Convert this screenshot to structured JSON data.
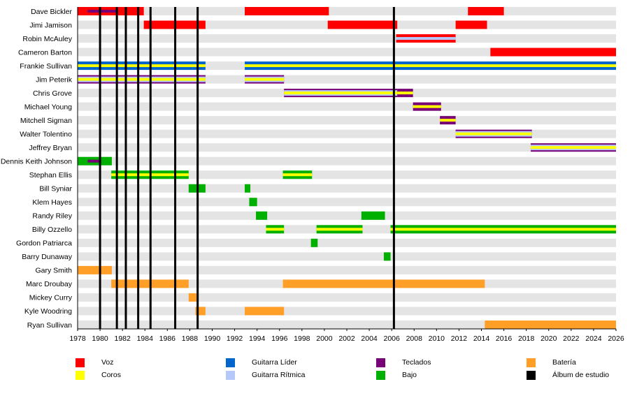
{
  "chart_data": {
    "type": "timeline",
    "xlim": [
      1978,
      2026
    ],
    "x_ticks": [
      1978,
      1980,
      1982,
      1984,
      1986,
      1988,
      1990,
      1992,
      1994,
      1996,
      1998,
      2000,
      2002,
      2004,
      2006,
      2008,
      2010,
      2012,
      2014,
      2016,
      2018,
      2020,
      2022,
      2024,
      2026
    ],
    "roles": {
      "vocals": {
        "label": "Voz",
        "color": "#FF0000"
      },
      "backing": {
        "label": "Coros",
        "color": "#FFFF00"
      },
      "lead": {
        "label": "Guitarra Líder",
        "color": "#0066CC"
      },
      "rhythm": {
        "label": "Guitarra Rítmica",
        "color": "#B4C8FA"
      },
      "keyboards": {
        "label": "Teclados",
        "color": "#770077"
      },
      "bass": {
        "label": "Bajo",
        "color": "#00B000"
      },
      "drums": {
        "label": "Batería",
        "color": "#FF9F27"
      },
      "album": {
        "label": "Álbum de estudio",
        "color": "#000000"
      }
    },
    "legend_order": [
      [
        "vocals",
        "backing"
      ],
      [
        "lead",
        "rhythm"
      ],
      [
        "keyboards",
        "bass"
      ],
      [
        "drums",
        "album"
      ]
    ],
    "albums": [
      1980.0,
      1981.5,
      1982.3,
      1983.4,
      1984.5,
      1986.7,
      1988.7,
      2006.2
    ],
    "members": [
      {
        "name": "Dave Bickler",
        "periods": [
          {
            "start": 1978.0,
            "end": 1983.9,
            "roles": [
              "vocals"
            ]
          },
          {
            "start": 1978.9,
            "end": 1981.6,
            "roles": [
              "keyboards"
            ],
            "secondary": true
          },
          {
            "start": 1992.9,
            "end": 2000.4,
            "roles": [
              "vocals"
            ]
          },
          {
            "start": 2012.8,
            "end": 2016.0,
            "roles": [
              "vocals"
            ]
          }
        ]
      },
      {
        "name": "Jimi Jamison",
        "periods": [
          {
            "start": 1983.9,
            "end": 1989.4,
            "roles": [
              "vocals"
            ]
          },
          {
            "start": 2000.3,
            "end": 2006.5,
            "roles": [
              "vocals"
            ]
          },
          {
            "start": 2011.7,
            "end": 2014.5,
            "roles": [
              "vocals"
            ]
          }
        ]
      },
      {
        "name": "Robin McAuley",
        "periods": [
          {
            "start": 2006.4,
            "end": 2011.7,
            "roles": [
              "vocals",
              "rhythm"
            ]
          }
        ]
      },
      {
        "name": "Cameron Barton",
        "periods": [
          {
            "start": 2014.8,
            "end": 2026.0,
            "roles": [
              "vocals"
            ]
          }
        ]
      },
      {
        "name": "Frankie Sullivan",
        "periods": [
          {
            "start": 1978.0,
            "end": 1989.4,
            "roles": [
              "lead",
              "backing"
            ]
          },
          {
            "start": 1992.9,
            "end": 2026.0,
            "roles": [
              "lead",
              "backing"
            ]
          }
        ]
      },
      {
        "name": "Jim Peterik",
        "periods": [
          {
            "start": 1978.0,
            "end": 1989.4,
            "roles": [
              "keyboards",
              "rhythm",
              "backing"
            ]
          },
          {
            "start": 1992.9,
            "end": 1996.4,
            "roles": [
              "keyboards",
              "rhythm",
              "backing"
            ]
          }
        ]
      },
      {
        "name": "Chris Grove",
        "periods": [
          {
            "start": 1996.4,
            "end": 2006.5,
            "roles": [
              "keyboards",
              "rhythm",
              "backing"
            ]
          },
          {
            "start": 2006.5,
            "end": 2007.9,
            "roles": [
              "keyboards",
              "backing"
            ]
          }
        ]
      },
      {
        "name": "Michael Young",
        "periods": [
          {
            "start": 2007.9,
            "end": 2010.4,
            "roles": [
              "keyboards",
              "backing"
            ]
          }
        ]
      },
      {
        "name": "Mitchell Sigman",
        "periods": [
          {
            "start": 2010.3,
            "end": 2011.7,
            "roles": [
              "keyboards",
              "backing"
            ]
          }
        ]
      },
      {
        "name": "Walter Tolentino",
        "periods": [
          {
            "start": 2011.7,
            "end": 2018.5,
            "roles": [
              "keyboards",
              "rhythm",
              "backing"
            ]
          }
        ]
      },
      {
        "name": "Jeffrey Bryan",
        "periods": [
          {
            "start": 2018.4,
            "end": 2026.0,
            "roles": [
              "keyboards",
              "rhythm",
              "backing"
            ]
          }
        ]
      },
      {
        "name": "Dennis Keith Johnson",
        "periods": [
          {
            "start": 1978.0,
            "end": 1981.05,
            "roles": [
              "bass"
            ]
          },
          {
            "start": 1978.9,
            "end": 1980.1,
            "roles": [
              "keyboards"
            ],
            "secondary": true
          }
        ]
      },
      {
        "name": "Stephan Ellis",
        "periods": [
          {
            "start": 1981.0,
            "end": 1987.9,
            "roles": [
              "bass",
              "backing"
            ]
          },
          {
            "start": 1996.3,
            "end": 1998.9,
            "roles": [
              "bass",
              "backing"
            ]
          }
        ]
      },
      {
        "name": "Bill Syniar",
        "periods": [
          {
            "start": 1987.9,
            "end": 1989.4,
            "roles": [
              "bass"
            ]
          },
          {
            "start": 1992.9,
            "end": 1993.4,
            "roles": [
              "bass"
            ]
          }
        ]
      },
      {
        "name": "Klem Hayes",
        "periods": [
          {
            "start": 1993.3,
            "end": 1994.0,
            "roles": [
              "bass"
            ]
          }
        ]
      },
      {
        "name": "Randy Riley",
        "periods": [
          {
            "start": 1993.9,
            "end": 1994.9,
            "roles": [
              "bass"
            ]
          },
          {
            "start": 2003.3,
            "end": 2005.4,
            "roles": [
              "bass"
            ]
          }
        ]
      },
      {
        "name": "Billy Ozzello",
        "periods": [
          {
            "start": 1994.8,
            "end": 1996.4,
            "roles": [
              "bass",
              "backing"
            ]
          },
          {
            "start": 1999.3,
            "end": 2003.4,
            "roles": [
              "bass",
              "backing"
            ]
          },
          {
            "start": 2005.9,
            "end": 2026.0,
            "roles": [
              "bass",
              "backing"
            ]
          }
        ]
      },
      {
        "name": "Gordon Patriarca",
        "periods": [
          {
            "start": 1998.8,
            "end": 1999.4,
            "roles": [
              "bass"
            ]
          }
        ]
      },
      {
        "name": "Barry Dunaway",
        "periods": [
          {
            "start": 2005.3,
            "end": 2005.9,
            "roles": [
              "bass"
            ]
          }
        ]
      },
      {
        "name": "Gary Smith",
        "periods": [
          {
            "start": 1978.0,
            "end": 1981.05,
            "roles": [
              "drums"
            ]
          }
        ]
      },
      {
        "name": "Marc Droubay",
        "periods": [
          {
            "start": 1981.0,
            "end": 1987.9,
            "roles": [
              "drums"
            ]
          },
          {
            "start": 1996.3,
            "end": 2014.3,
            "roles": [
              "drums"
            ]
          }
        ]
      },
      {
        "name": "Mickey Curry",
        "periods": [
          {
            "start": 1987.9,
            "end": 1988.6,
            "roles": [
              "drums"
            ]
          }
        ]
      },
      {
        "name": "Kyle Woodring",
        "periods": [
          {
            "start": 1988.5,
            "end": 1989.4,
            "roles": [
              "drums"
            ]
          },
          {
            "start": 1992.9,
            "end": 1996.4,
            "roles": [
              "drums"
            ]
          }
        ]
      },
      {
        "name": "Ryan Sullivan",
        "periods": [
          {
            "start": 2014.3,
            "end": 2026.0,
            "roles": [
              "drums"
            ]
          }
        ]
      }
    ]
  }
}
